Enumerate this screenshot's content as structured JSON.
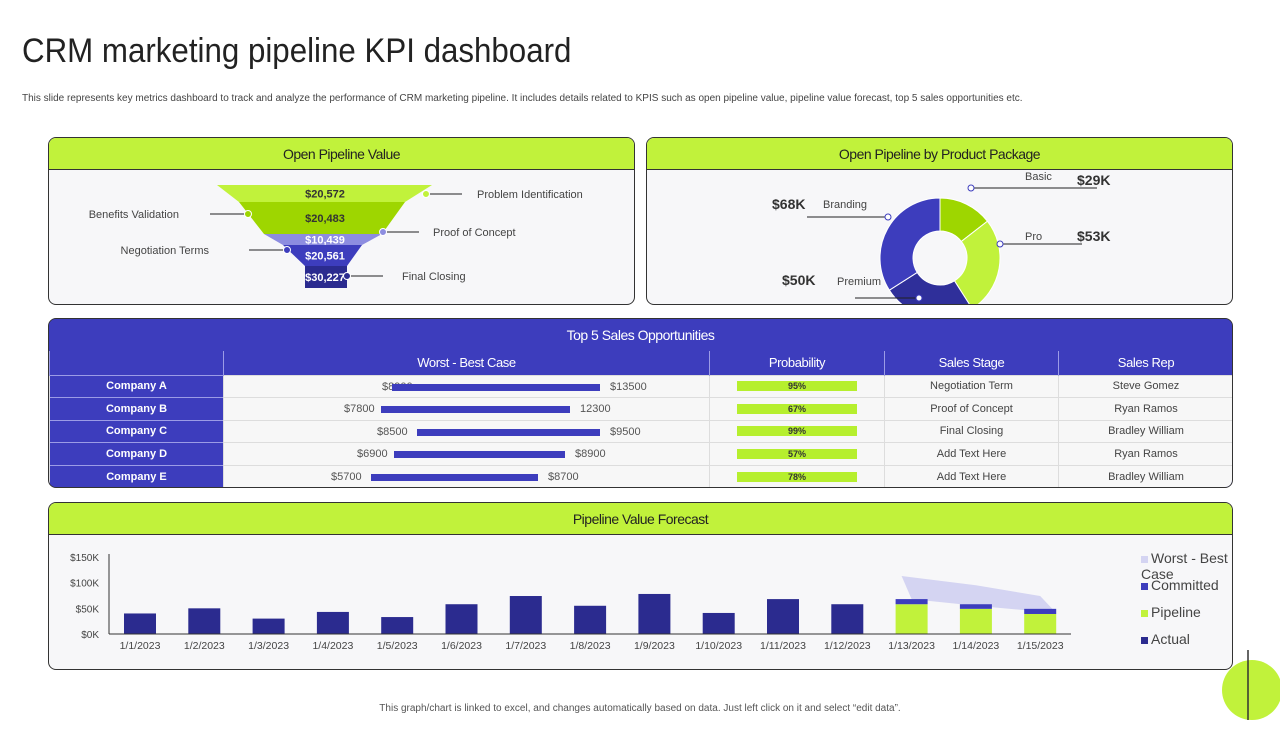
{
  "title": "CRM marketing pipeline KPI dashboard",
  "subtitle": "This slide represents key metrics dashboard to track and analyze the performance of CRM marketing pipeline. It includes details related to KPIS  such as open pipeline value, pipeline value forecast, top 5 sales opportunities etc.",
  "funnel": {
    "title": "Open Pipeline Value",
    "stages": [
      {
        "label": "Problem Identification",
        "value": "$20,572",
        "color": "#c1f23b"
      },
      {
        "label": "Benefits Validation",
        "value": "$20,483",
        "color": "#9ed600"
      },
      {
        "label": "Proof of Concept",
        "value": "$10,439",
        "color": "#8d8de0"
      },
      {
        "label": "Negotiation Terms",
        "value": "$20,561",
        "color": "#3d3dbd"
      },
      {
        "label": "Final Closing",
        "value": "$30,227",
        "color": "#2b2b8f"
      }
    ]
  },
  "donut": {
    "title": "Open Pipeline by Product Package",
    "slices": [
      {
        "label": "Basic",
        "value": 29,
        "display": "$29K",
        "color": "#9ed600"
      },
      {
        "label": "Pro",
        "value": 53,
        "display": "$53K",
        "color": "#c1f23b"
      },
      {
        "label": "Premium",
        "value": 50,
        "display": "$50K",
        "color": "#2f2f9a"
      },
      {
        "label": "Branding",
        "value": 68,
        "display": "$68K",
        "color": "#3d3dbd"
      }
    ]
  },
  "table": {
    "title": "Top 5 Sales Opportunities",
    "headers": [
      "",
      "Worst - Best Case",
      "Probability",
      "Sales Stage",
      "Sales Rep"
    ],
    "rows": [
      {
        "company": "Company A",
        "worst": "$8900",
        "best": "$13500",
        "probability": "95%",
        "stage": "Negotiation Term",
        "rep": "Steve Gomez"
      },
      {
        "company": "Company B",
        "worst": "$7800",
        "best": "12300",
        "probability": "67%",
        "stage": "Proof of Concept",
        "rep": "Ryan Ramos"
      },
      {
        "company": "Company C",
        "worst": "$8500",
        "best": "$9500",
        "probability": "99%",
        "stage": "Final Closing",
        "rep": "Bradley William"
      },
      {
        "company": "Company D",
        "worst": "$6900",
        "best": "$8900",
        "probability": "57%",
        "stage": "Add Text Here",
        "rep": "Ryan Ramos"
      },
      {
        "company": "Company E",
        "worst": "$5700",
        "best": "$8700",
        "probability": "78%",
        "stage": "Add Text Here",
        "rep": "Bradley William"
      }
    ]
  },
  "forecast": {
    "title": "Pipeline Value Forecast"
  },
  "chart_data": {
    "type": "bar",
    "ylim": [
      0,
      150
    ],
    "yticks": [
      "$0K",
      "$50K",
      "$100K",
      "$150K"
    ],
    "categories": [
      "1/1/2023",
      "1/2/2023",
      "1/3/2023",
      "1/4/2023",
      "1/5/2023",
      "1/6/2023",
      "1/7/2023",
      "1/8/2023",
      "1/9/2023",
      "1/10/2023",
      "1/11/2023",
      "1/12/2023",
      "1/13/2023",
      "1/14/2023",
      "1/15/2023"
    ],
    "series": [
      {
        "name": "Worst - Best Case",
        "type": "area",
        "color": "#d4d4f2",
        "low": [
          null,
          null,
          null,
          null,
          null,
          null,
          null,
          null,
          null,
          null,
          null,
          null,
          68,
          55,
          41
        ],
        "high": [
          null,
          null,
          null,
          null,
          null,
          null,
          null,
          null,
          null,
          null,
          null,
          null,
          113,
          95,
          74
        ]
      },
      {
        "name": "Committed",
        "color": "#3d3dbd",
        "values": [
          null,
          null,
          null,
          null,
          null,
          null,
          null,
          null,
          null,
          null,
          null,
          null,
          10,
          9,
          10
        ]
      },
      {
        "name": "Pipeline",
        "color": "#c1f23b",
        "values": [
          null,
          null,
          null,
          null,
          null,
          null,
          null,
          null,
          null,
          null,
          null,
          null,
          58,
          49,
          39
        ]
      },
      {
        "name": "Actual",
        "color": "#2b2b8f",
        "values": [
          40,
          50,
          30,
          43,
          33,
          58,
          74,
          55,
          78,
          41,
          68,
          58,
          null,
          null,
          null
        ]
      }
    ],
    "legend": "right"
  },
  "footer": "This graph/chart is linked to excel, and changes automatically based on data. Just left click on it and select “edit data”."
}
